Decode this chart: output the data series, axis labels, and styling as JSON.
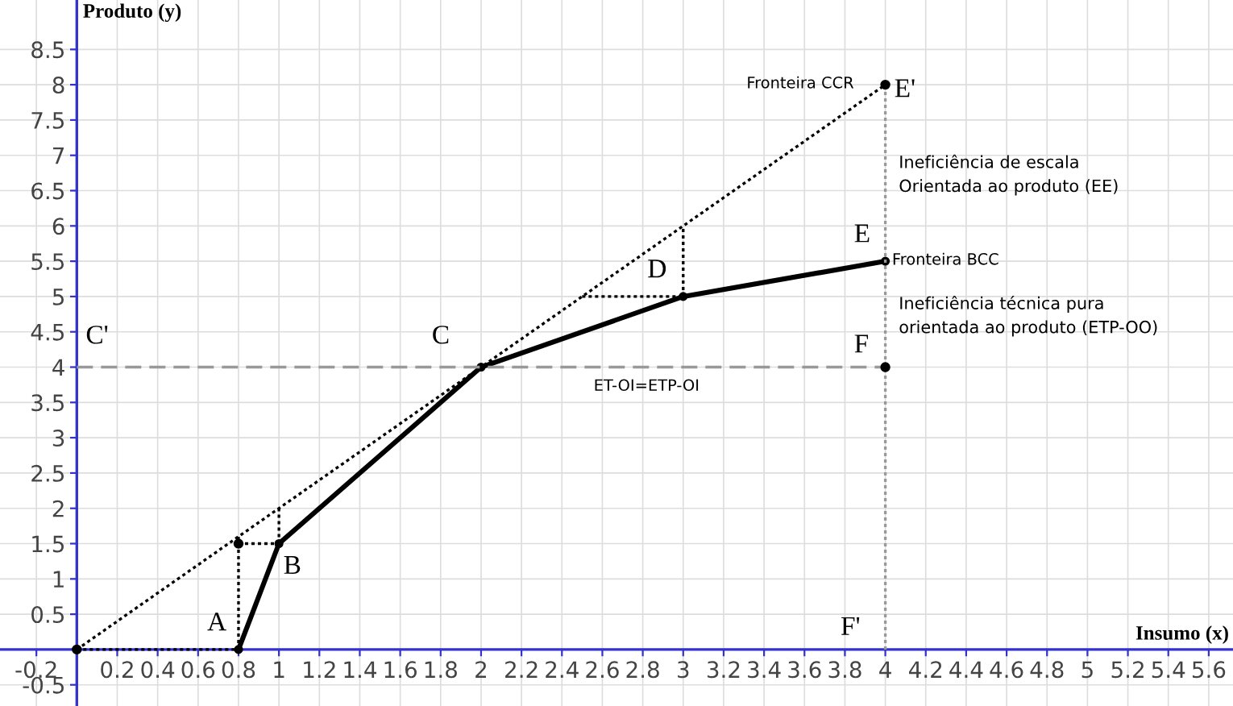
{
  "chart_data": {
    "type": "line",
    "xlabel": "Insumo (x)",
    "ylabel": "Produto (y)",
    "xlim": [
      -0.38,
      5.72
    ],
    "ylim": [
      -0.8,
      9.2
    ],
    "xticks": [
      -0.2,
      0.2,
      0.4,
      0.6,
      0.8,
      1,
      1.2,
      1.4,
      1.6,
      1.8,
      2,
      2.2,
      2.4,
      2.6,
      2.8,
      3,
      3.2,
      3.4,
      3.6,
      3.8,
      4,
      4.2,
      4.4,
      4.6,
      4.8,
      5,
      5.2,
      5.4,
      5.6
    ],
    "yticks": [
      -0.5,
      0.5,
      1,
      1.5,
      2,
      2.5,
      3,
      3.5,
      4,
      4.5,
      5,
      5.5,
      6,
      6.5,
      7,
      7.5,
      8,
      8.5
    ],
    "grid": true,
    "series": [
      {
        "x": [
          0,
          4
        ],
        "values": [
          0,
          8
        ],
        "color": "#000000",
        "line_style": "dotted",
        "marker": "none"
      },
      {
        "type": "line",
        "x": [
          0.8,
          1,
          2,
          3,
          4
        ],
        "values": [
          0,
          1.5,
          4,
          5,
          5.5
        ],
        "color": "#000000",
        "line_style": "solid",
        "marker": "circle"
      },
      {
        "type": "line",
        "x": [
          0,
          4
        ],
        "values": [
          4,
          4
        ],
        "color": "#999999",
        "line_style": "dashed",
        "marker": "none"
      },
      {
        "type": "line",
        "x": [
          4,
          4
        ],
        "values": [
          0,
          8
        ],
        "color": "#999999",
        "line_style": "dotted",
        "marker": "none"
      },
      {
        "type": "line",
        "x": [
          0,
          0.8
        ],
        "values": [
          0,
          0
        ],
        "color": "#000000",
        "line_style": "dotted",
        "marker": "none"
      },
      {
        "type": "line",
        "x": [
          0.8,
          0.8
        ],
        "values": [
          0,
          1.6
        ],
        "color": "#000000",
        "line_style": "dotted",
        "marker": "none"
      },
      {
        "type": "line",
        "x": [
          0.8,
          1
        ],
        "values": [
          1.5,
          1.5
        ],
        "color": "#000000",
        "line_style": "dotted",
        "marker": "none"
      },
      {
        "type": "line",
        "x": [
          1,
          1
        ],
        "values": [
          1.5,
          2
        ],
        "color": "#000000",
        "line_style": "dotted",
        "marker": "none"
      },
      {
        "type": "line",
        "x": [
          3,
          3
        ],
        "values": [
          5,
          6
        ],
        "color": "#000000",
        "line_style": "dotted",
        "marker": "none"
      },
      {
        "type": "line",
        "x": [
          2.5,
          3
        ],
        "values": [
          5,
          5
        ],
        "color": "#000000",
        "line_style": "dotted",
        "marker": "none"
      },
      {
        "type": "scatter",
        "x": [
          0,
          4,
          4,
          0.8
        ],
        "values": [
          0,
          4,
          8,
          1.5
        ],
        "color": "#000000",
        "marker": "circle"
      }
    ],
    "annotations": [
      {
        "text": "A",
        "x": 0.8,
        "y": 0
      },
      {
        "text": "B",
        "x": 1,
        "y": 1.5
      },
      {
        "text": "C",
        "x": 2,
        "y": 4
      },
      {
        "text": "C'",
        "x": 0,
        "y": 4
      },
      {
        "text": "D",
        "x": 3,
        "y": 5
      },
      {
        "text": "E",
        "x": 4,
        "y": 5.5
      },
      {
        "text": "E'",
        "x": 4,
        "y": 8
      },
      {
        "text": "F",
        "x": 4,
        "y": 4
      },
      {
        "text": "F'",
        "x": 4,
        "y": 0
      },
      {
        "text": "Fronteira CCR",
        "x": 4,
        "y": 8
      },
      {
        "text": "Fronteira BCC",
        "x": 4,
        "y": 5.5
      },
      {
        "text": "Ineficiência de escala\nOrientada ao produto (EE)",
        "x": 4,
        "y": 6.75
      },
      {
        "text": "Ineficiência técnica pura\norientada ao produto (ETP-OO)",
        "x": 4,
        "y": 4.75
      },
      {
        "text": "ET-OI=ETP-OI",
        "x": 3,
        "y": 4
      }
    ]
  }
}
